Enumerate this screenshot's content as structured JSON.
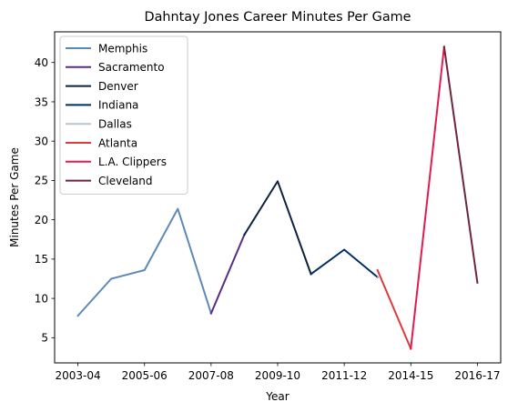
{
  "chart_data": {
    "type": "line",
    "title": "Dahntay Jones Career Minutes Per Game",
    "xlabel": "Year",
    "ylabel": "Minutes Per Game",
    "x_tick_labels": [
      "2003-04",
      "2005-06",
      "2007-08",
      "2009-10",
      "2011-12",
      "2014-15",
      "2016-17"
    ],
    "y_ticks": [
      5,
      10,
      15,
      20,
      25,
      30,
      35,
      40
    ],
    "ylim": [
      1.8,
      43.9
    ],
    "xlim": [
      -0.7,
      12.7
    ],
    "grid": false,
    "legend_position": "upper left",
    "series": [
      {
        "name": "Memphis",
        "color": "#5d89b8",
        "x": [
          0,
          1,
          2,
          3,
          4
        ],
        "y": [
          7.8,
          12.5,
          13.6,
          21.4,
          8.1
        ]
      },
      {
        "name": "Sacramento",
        "color": "#5a2d81",
        "x": [
          4,
          5
        ],
        "y": [
          8.1,
          18.1
        ]
      },
      {
        "name": "Denver",
        "color": "#0e2240",
        "x": [
          5,
          6,
          7
        ],
        "y": [
          18.1,
          24.9,
          13.1
        ]
      },
      {
        "name": "Indiana",
        "color": "#002d62",
        "x": [
          7,
          8,
          9
        ],
        "y": [
          13.1,
          16.2,
          12.7
        ]
      },
      {
        "name": "Dallas",
        "color": "#bbc4ca",
        "x": [
          9
        ],
        "y": [
          12.7
        ]
      },
      {
        "name": "Atlanta",
        "color": "#e03a3e",
        "x": [
          9,
          10
        ],
        "y": [
          13.6,
          3.6
        ]
      },
      {
        "name": "L.A. Clippers",
        "color": "#e31b4f",
        "x": [
          10,
          11
        ],
        "y": [
          3.6,
          42.0
        ]
      },
      {
        "name": "Cleveland",
        "color": "#6f263d",
        "x": [
          11,
          12
        ],
        "y": [
          42.0,
          12.0
        ]
      }
    ]
  }
}
